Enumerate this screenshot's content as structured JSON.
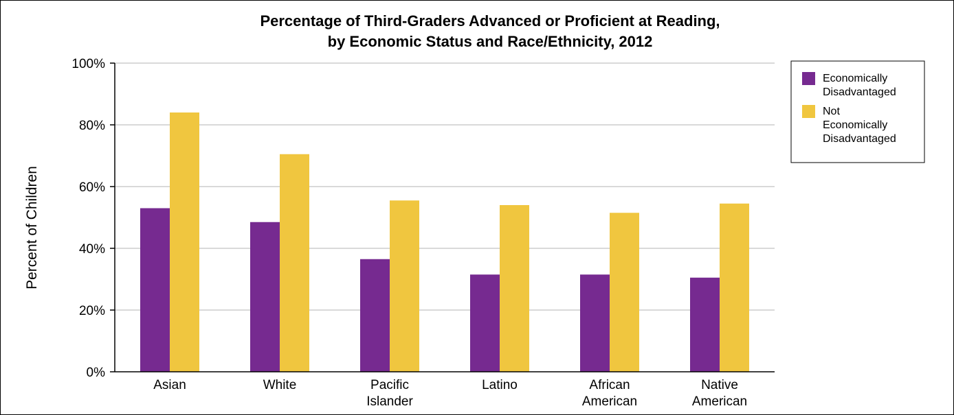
{
  "chart_data": {
    "type": "bar",
    "title": "Percentage of Third-Graders Advanced or Proficient at Reading,",
    "subtitle": "by Economic Status and Race/Ethnicity, 2012",
    "xlabel": "",
    "ylabel": "Percent of Children",
    "ylim": [
      0,
      100
    ],
    "yticks": [
      "0%",
      "20%",
      "40%",
      "60%",
      "80%",
      "100%"
    ],
    "grid": true,
    "legend_position": "right",
    "categories": [
      [
        "Asian"
      ],
      [
        "White"
      ],
      [
        "Pacific",
        "Islander"
      ],
      [
        "Latino"
      ],
      [
        "African",
        "American"
      ],
      [
        "Native",
        "American"
      ]
    ],
    "series": [
      {
        "name": [
          "Economically",
          "Disadvantaged"
        ],
        "color": "#762a90",
        "values": [
          53,
          48.5,
          36.5,
          31.5,
          31.5,
          30.5
        ]
      },
      {
        "name": [
          "Not",
          "Economically",
          "Disadvantaged"
        ],
        "color": "#f0c63f",
        "values": [
          84,
          70.5,
          55.5,
          54,
          51.5,
          54.5
        ]
      }
    ]
  }
}
